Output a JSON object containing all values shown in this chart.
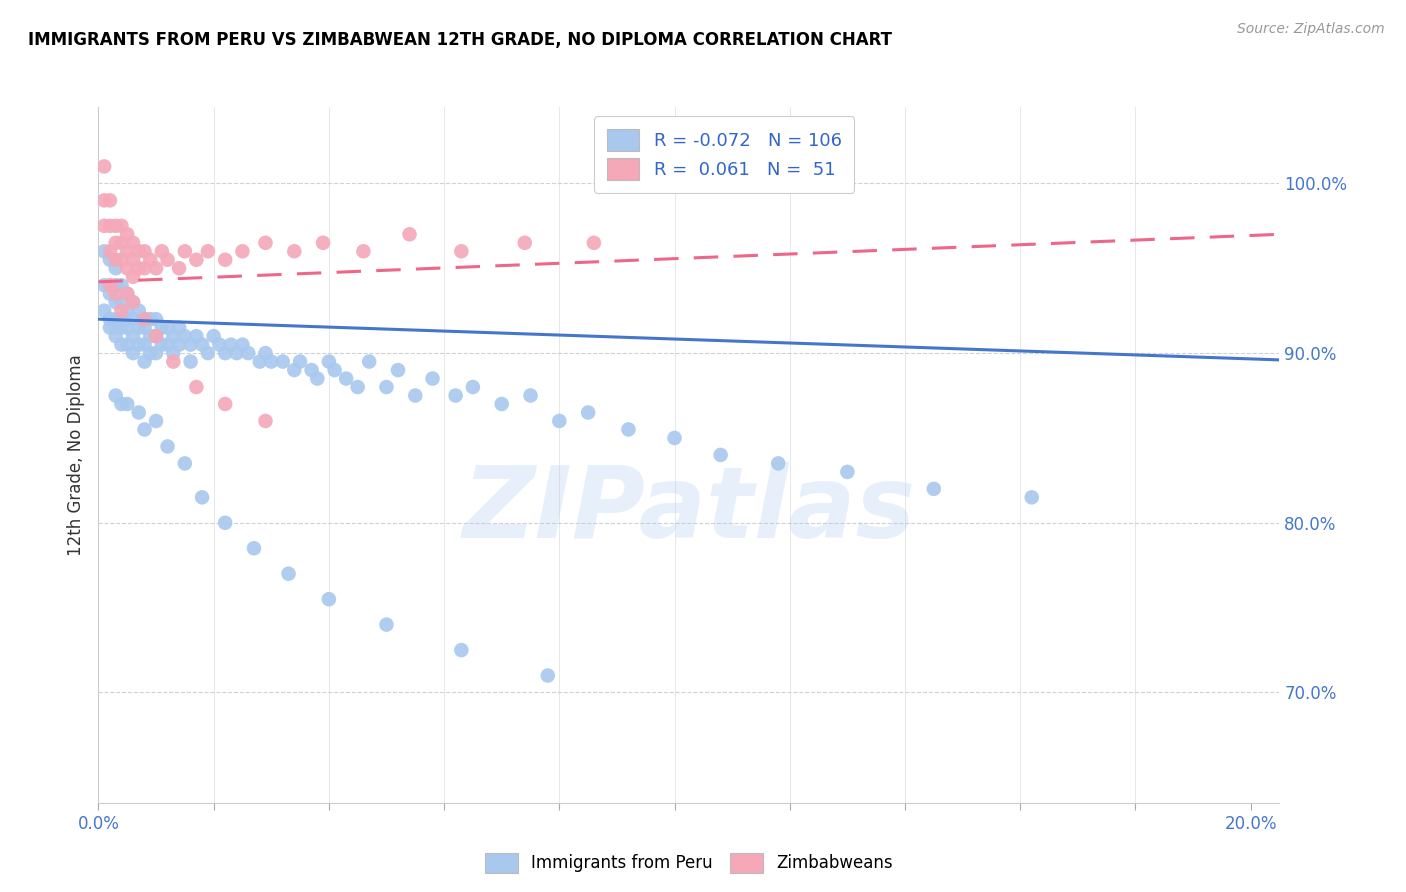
{
  "title": "IMMIGRANTS FROM PERU VS ZIMBABWEAN 12TH GRADE, NO DIPLOMA CORRELATION CHART",
  "source": "Source: ZipAtlas.com",
  "ylabel": "12th Grade, No Diploma",
  "legend_blue_label": "Immigrants from Peru",
  "legend_pink_label": "Zimbabweans",
  "legend_R_blue": "R = -0.072",
  "legend_N_blue": "N = 106",
  "legend_R_pink": "R =  0.061",
  "legend_N_pink": "N =  51",
  "blue_color": "#A8C8EE",
  "pink_color": "#F4A8B8",
  "blue_line_color": "#4477CC",
  "pink_line_color": "#EE6688",
  "watermark": "ZIPatlas",
  "xlim": [
    0.0,
    0.205
  ],
  "ylim": [
    0.635,
    1.045
  ],
  "ytick_values": [
    0.7,
    0.8,
    0.9,
    1.0
  ],
  "ytick_labels": [
    "70.0%",
    "80.0%",
    "90.0%",
    "100.0%"
  ],
  "blue_line_x0": 0.0,
  "blue_line_x1": 0.205,
  "blue_line_y0": 0.92,
  "blue_line_y1": 0.896,
  "pink_line_x0": 0.0,
  "pink_line_x1": 0.205,
  "pink_line_y0": 0.942,
  "pink_line_y1": 0.97,
  "blue_x": [
    0.001,
    0.001,
    0.001,
    0.002,
    0.002,
    0.002,
    0.002,
    0.003,
    0.003,
    0.003,
    0.003,
    0.003,
    0.003,
    0.004,
    0.004,
    0.004,
    0.004,
    0.004,
    0.005,
    0.005,
    0.005,
    0.005,
    0.006,
    0.006,
    0.006,
    0.006,
    0.007,
    0.007,
    0.007,
    0.008,
    0.008,
    0.008,
    0.008,
    0.009,
    0.009,
    0.009,
    0.01,
    0.01,
    0.01,
    0.011,
    0.011,
    0.012,
    0.012,
    0.013,
    0.013,
    0.014,
    0.014,
    0.015,
    0.016,
    0.016,
    0.017,
    0.018,
    0.019,
    0.02,
    0.021,
    0.022,
    0.023,
    0.024,
    0.025,
    0.026,
    0.028,
    0.029,
    0.03,
    0.032,
    0.034,
    0.035,
    0.037,
    0.038,
    0.04,
    0.041,
    0.043,
    0.045,
    0.047,
    0.05,
    0.052,
    0.055,
    0.058,
    0.062,
    0.065,
    0.07,
    0.075,
    0.08,
    0.085,
    0.092,
    0.1,
    0.108,
    0.118,
    0.13,
    0.145,
    0.162,
    0.003,
    0.004,
    0.005,
    0.007,
    0.008,
    0.01,
    0.012,
    0.015,
    0.018,
    0.022,
    0.027,
    0.033,
    0.04,
    0.05,
    0.063,
    0.078
  ],
  "blue_y": [
    0.96,
    0.94,
    0.925,
    0.955,
    0.935,
    0.92,
    0.915,
    0.95,
    0.94,
    0.93,
    0.92,
    0.915,
    0.91,
    0.94,
    0.93,
    0.92,
    0.915,
    0.905,
    0.935,
    0.925,
    0.915,
    0.905,
    0.93,
    0.92,
    0.91,
    0.9,
    0.925,
    0.915,
    0.905,
    0.92,
    0.915,
    0.905,
    0.895,
    0.92,
    0.91,
    0.9,
    0.92,
    0.91,
    0.9,
    0.915,
    0.905,
    0.915,
    0.905,
    0.91,
    0.9,
    0.915,
    0.905,
    0.91,
    0.905,
    0.895,
    0.91,
    0.905,
    0.9,
    0.91,
    0.905,
    0.9,
    0.905,
    0.9,
    0.905,
    0.9,
    0.895,
    0.9,
    0.895,
    0.895,
    0.89,
    0.895,
    0.89,
    0.885,
    0.895,
    0.89,
    0.885,
    0.88,
    0.895,
    0.88,
    0.89,
    0.875,
    0.885,
    0.875,
    0.88,
    0.87,
    0.875,
    0.86,
    0.865,
    0.855,
    0.85,
    0.84,
    0.835,
    0.83,
    0.82,
    0.815,
    0.875,
    0.87,
    0.87,
    0.865,
    0.855,
    0.86,
    0.845,
    0.835,
    0.815,
    0.8,
    0.785,
    0.77,
    0.755,
    0.74,
    0.725,
    0.71
  ],
  "pink_x": [
    0.001,
    0.001,
    0.001,
    0.002,
    0.002,
    0.002,
    0.003,
    0.003,
    0.003,
    0.004,
    0.004,
    0.004,
    0.005,
    0.005,
    0.005,
    0.006,
    0.006,
    0.006,
    0.007,
    0.007,
    0.008,
    0.008,
    0.009,
    0.01,
    0.011,
    0.012,
    0.014,
    0.015,
    0.017,
    0.019,
    0.022,
    0.025,
    0.029,
    0.034,
    0.039,
    0.046,
    0.054,
    0.063,
    0.074,
    0.086,
    0.002,
    0.003,
    0.004,
    0.005,
    0.006,
    0.008,
    0.01,
    0.013,
    0.017,
    0.022,
    0.029
  ],
  "pink_y": [
    1.01,
    0.99,
    0.975,
    0.99,
    0.975,
    0.96,
    0.975,
    0.965,
    0.955,
    0.975,
    0.965,
    0.955,
    0.97,
    0.96,
    0.95,
    0.965,
    0.955,
    0.945,
    0.96,
    0.95,
    0.96,
    0.95,
    0.955,
    0.95,
    0.96,
    0.955,
    0.95,
    0.96,
    0.955,
    0.96,
    0.955,
    0.96,
    0.965,
    0.96,
    0.965,
    0.96,
    0.97,
    0.96,
    0.965,
    0.965,
    0.94,
    0.935,
    0.925,
    0.935,
    0.93,
    0.92,
    0.91,
    0.895,
    0.88,
    0.87,
    0.86
  ]
}
